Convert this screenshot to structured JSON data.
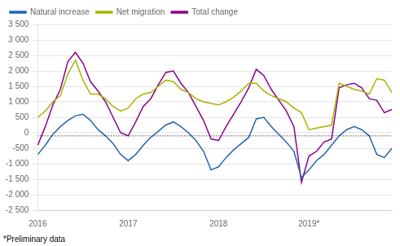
{
  "chart_data": {
    "type": "line",
    "annotations": [
      "*Preliminary data"
    ],
    "categories": [
      "2016",
      null,
      null,
      null,
      null,
      null,
      null,
      null,
      null,
      null,
      null,
      null,
      "2017",
      null,
      null,
      null,
      null,
      null,
      null,
      null,
      null,
      null,
      null,
      null,
      "2018",
      null,
      null,
      null,
      null,
      null,
      null,
      null,
      null,
      null,
      null,
      null,
      "2019*",
      null,
      null,
      null,
      null,
      null,
      null,
      null,
      null,
      null,
      null,
      null
    ],
    "series": [
      {
        "name": "Natural increase",
        "color": "#2166ac",
        "values": [
          -700,
          -400,
          -50,
          200,
          400,
          550,
          600,
          400,
          100,
          -100,
          -350,
          -700,
          -900,
          -700,
          -400,
          -150,
          50,
          250,
          350,
          200,
          0,
          -250,
          -600,
          -1200,
          -1100,
          -800,
          -550,
          -350,
          -150,
          450,
          500,
          200,
          -50,
          -300,
          -600,
          -1450,
          -1200,
          -900,
          -700,
          -400,
          -100,
          100,
          200,
          100,
          -100,
          -700,
          -800,
          -500
        ]
      },
      {
        "name": "Net migration",
        "color": "#a8b400",
        "values": [
          500,
          700,
          1000,
          1200,
          1900,
          2350,
          1700,
          1250,
          1250,
          1100,
          850,
          700,
          800,
          1100,
          1250,
          1300,
          1500,
          1700,
          1650,
          1400,
          1300,
          1100,
          1000,
          950,
          900,
          1000,
          1150,
          1350,
          1600,
          1600,
          1350,
          1200,
          1100,
          1000,
          800,
          650,
          100,
          150,
          200,
          250,
          1600,
          1500,
          1400,
          1350,
          1250,
          1750,
          1700,
          1300
        ]
      },
      {
        "name": "Total change",
        "color": "#8b008b",
        "values": [
          -400,
          200,
          900,
          1400,
          2300,
          2600,
          2250,
          1650,
          1350,
          1000,
          500,
          0,
          -100,
          350,
          850,
          1100,
          1550,
          1950,
          2000,
          1600,
          1300,
          850,
          400,
          -200,
          -250,
          200,
          600,
          1000,
          1450,
          2050,
          1850,
          1400,
          1050,
          700,
          200,
          -1600,
          -750,
          -600,
          -300,
          -200,
          1450,
          1550,
          1600,
          1450,
          1100,
          1050,
          650,
          750
        ]
      }
    ],
    "hline": -100,
    "ylim": [
      -2500,
      3500
    ],
    "yticks": [
      {
        "value": -2500,
        "label": "-2 500"
      },
      {
        "value": -2000,
        "label": "-2 000"
      },
      {
        "value": -1500,
        "label": "-1 500"
      },
      {
        "value": -1000,
        "label": "-1 000"
      },
      -500,
      0,
      500,
      {
        "value": 1000,
        "label": "1 000"
      },
      {
        "value": 1500,
        "label": "1 500"
      },
      {
        "value": 2000,
        "label": "2 000"
      },
      {
        "value": 2500,
        "label": "2 500"
      },
      {
        "value": 3000,
        "label": "3 000"
      },
      {
        "value": 3500,
        "label": "3 500"
      }
    ],
    "grid": "y",
    "legend": "upper left"
  }
}
